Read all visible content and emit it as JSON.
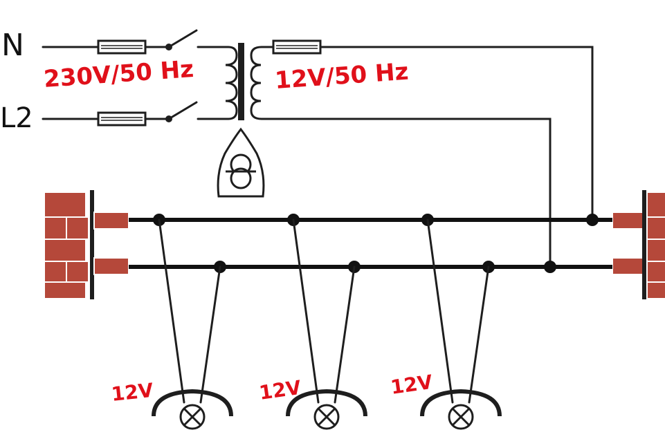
{
  "labels": {
    "phase_top": "N",
    "phase_bottom": "L2",
    "primary_voltage": "230V/50 Hz",
    "secondary_voltage": "12V/50 Hz",
    "lamp_1_voltage": "12V",
    "lamp_2_voltage": "12V",
    "lamp_3_voltage": "12V"
  },
  "colors": {
    "wire": "#1e1e1e",
    "annotation": "#e0101a",
    "brick": "#b5483a"
  }
}
